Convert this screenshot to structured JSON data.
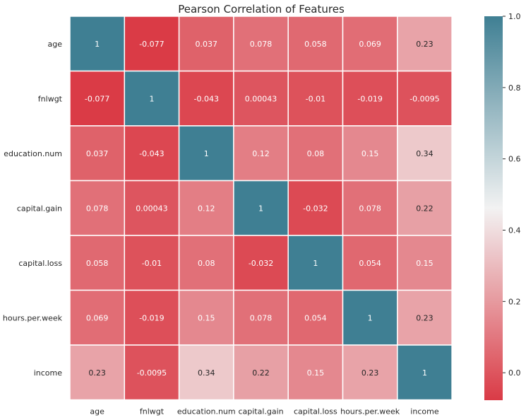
{
  "chart_data": {
    "type": "heatmap",
    "title": "Pearson Correlation of Features",
    "rows": [
      "age",
      "fnlwgt",
      "education.num",
      "capital.gain",
      "capital.loss",
      "hours.per.week",
      "income"
    ],
    "cols": [
      "age",
      "fnlwgt",
      "education.num",
      "capital.gain",
      "capital.loss",
      "hours.per.week",
      "income"
    ],
    "values": [
      [
        1,
        -0.077,
        0.037,
        0.078,
        0.058,
        0.069,
        0.23
      ],
      [
        -0.077,
        1,
        -0.043,
        0.00043,
        -0.01,
        -0.019,
        -0.0095
      ],
      [
        0.037,
        -0.043,
        1,
        0.12,
        0.08,
        0.15,
        0.34
      ],
      [
        0.078,
        0.00043,
        0.12,
        1,
        -0.032,
        0.078,
        0.22
      ],
      [
        0.058,
        -0.01,
        0.08,
        -0.032,
        1,
        0.054,
        0.15
      ],
      [
        0.069,
        -0.019,
        0.15,
        0.078,
        0.054,
        1,
        0.23
      ],
      [
        0.23,
        -0.0095,
        0.34,
        0.22,
        0.15,
        0.23,
        1
      ]
    ],
    "labels": [
      [
        "1",
        "-0.077",
        "0.037",
        "0.078",
        "0.058",
        "0.069",
        "0.23"
      ],
      [
        "-0.077",
        "1",
        "-0.043",
        "0.00043",
        "-0.01",
        "-0.019",
        "-0.0095"
      ],
      [
        "0.037",
        "-0.043",
        "1",
        "0.12",
        "0.08",
        "0.15",
        "0.34"
      ],
      [
        "0.078",
        "0.00043",
        "0.12",
        "1",
        "-0.032",
        "0.078",
        "0.22"
      ],
      [
        "0.058",
        "-0.01",
        "0.08",
        "-0.032",
        "1",
        "0.054",
        "0.15"
      ],
      [
        "0.069",
        "-0.019",
        "0.15",
        "0.078",
        "0.054",
        "1",
        "0.23"
      ],
      [
        "0.23",
        "-0.0095",
        "0.34",
        "0.22",
        "0.15",
        "0.23",
        "1"
      ]
    ],
    "colorbar": {
      "vmin": -0.077,
      "vmax": 1.0,
      "ticks": [
        0.0,
        0.2,
        0.4,
        0.6,
        0.8,
        1.0
      ],
      "tick_labels": [
        "0.0",
        "0.2",
        "0.4",
        "0.6",
        "0.8",
        "1.0"
      ]
    },
    "colormap": {
      "low": "#da3b46",
      "mid": "#f2f2f2",
      "high": "#3f7f93"
    },
    "cell_border_color": "#ffffff"
  }
}
